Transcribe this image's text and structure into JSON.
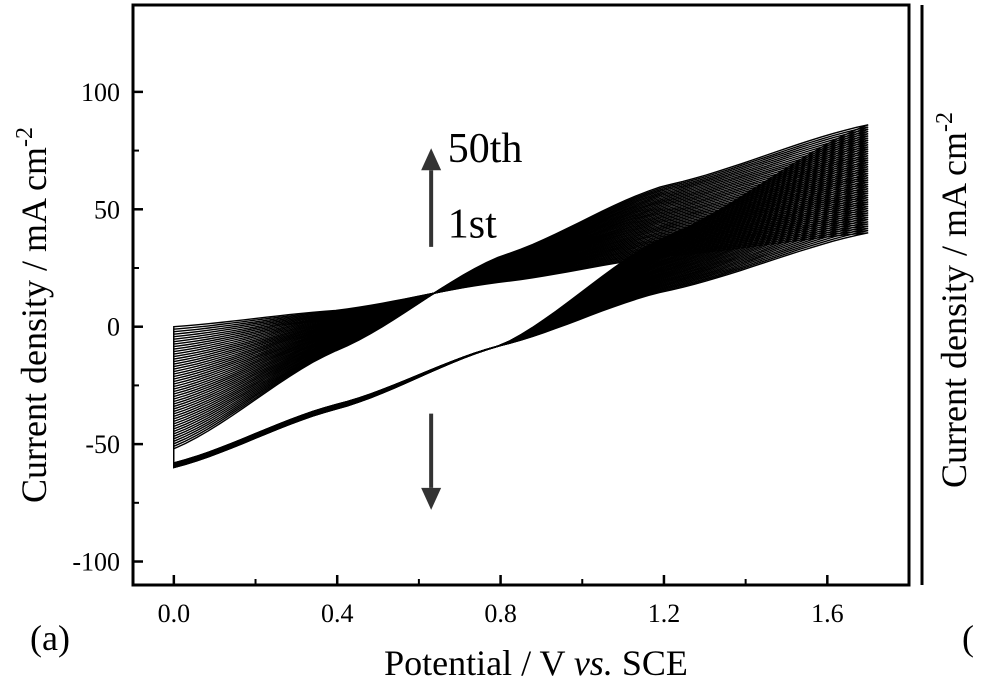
{
  "panel_label": "(a)",
  "next_panel_label": "(",
  "next_panel_ylabel": "Current density / mA cm",
  "next_panel_ylabel_exp": "-2",
  "colors": {
    "curves": "#000000",
    "arrow": "#333333",
    "background": "#ffffff"
  },
  "chart_data": {
    "type": "line",
    "title": "",
    "xlabel": "Potential / V vs. SCE",
    "xlabel_parts": {
      "pre": "Potential / V ",
      "italic": "vs.",
      "post": " SCE"
    },
    "ylabel": "Current density / mA cm-2",
    "ylabel_parts": {
      "base": "Current density / mA cm",
      "exp": "-2"
    },
    "xlim": [
      -0.1,
      1.8
    ],
    "ylim": [
      -110,
      137
    ],
    "xticks": [
      0.0,
      0.4,
      0.8,
      1.2,
      1.6
    ],
    "xtick_labels": [
      "0.0",
      "0.4",
      "0.8",
      "1.2",
      "1.6"
    ],
    "yticks": [
      -100,
      -50,
      0,
      50,
      100
    ],
    "ytick_labels": [
      "-100",
      "-50",
      "0",
      "50",
      "100"
    ],
    "grid": false,
    "legend": "none",
    "cycles": 50,
    "annotations": [
      {
        "text": "50th",
        "x": 0.7,
        "y": 76
      },
      {
        "text": "1st",
        "x": 0.7,
        "y": 44
      }
    ],
    "arrows": [
      {
        "x": 0.63,
        "y_from": 34,
        "y_to": 76
      },
      {
        "x": 0.63,
        "y_from": -37,
        "y_to": -78
      }
    ],
    "series": [
      {
        "label": "1st",
        "E": [
          0.0,
          0.4,
          0.8,
          1.2,
          1.7
        ],
        "j_anodic": [
          0.0,
          7.0,
          19.0,
          30.0,
          40.0
        ],
        "j_cathodic": [
          -58.0,
          -33.0,
          -8.0,
          15.0,
          40.0
        ]
      },
      {
        "label": "50th",
        "E": [
          0.0,
          0.4,
          0.8,
          1.2,
          1.7
        ],
        "j_anodic": [
          -52.0,
          -10.0,
          30.0,
          60.0,
          86.0
        ],
        "j_cathodic": [
          -60.0,
          -35.0,
          -8.0,
          38.0,
          86.0
        ]
      }
    ]
  }
}
